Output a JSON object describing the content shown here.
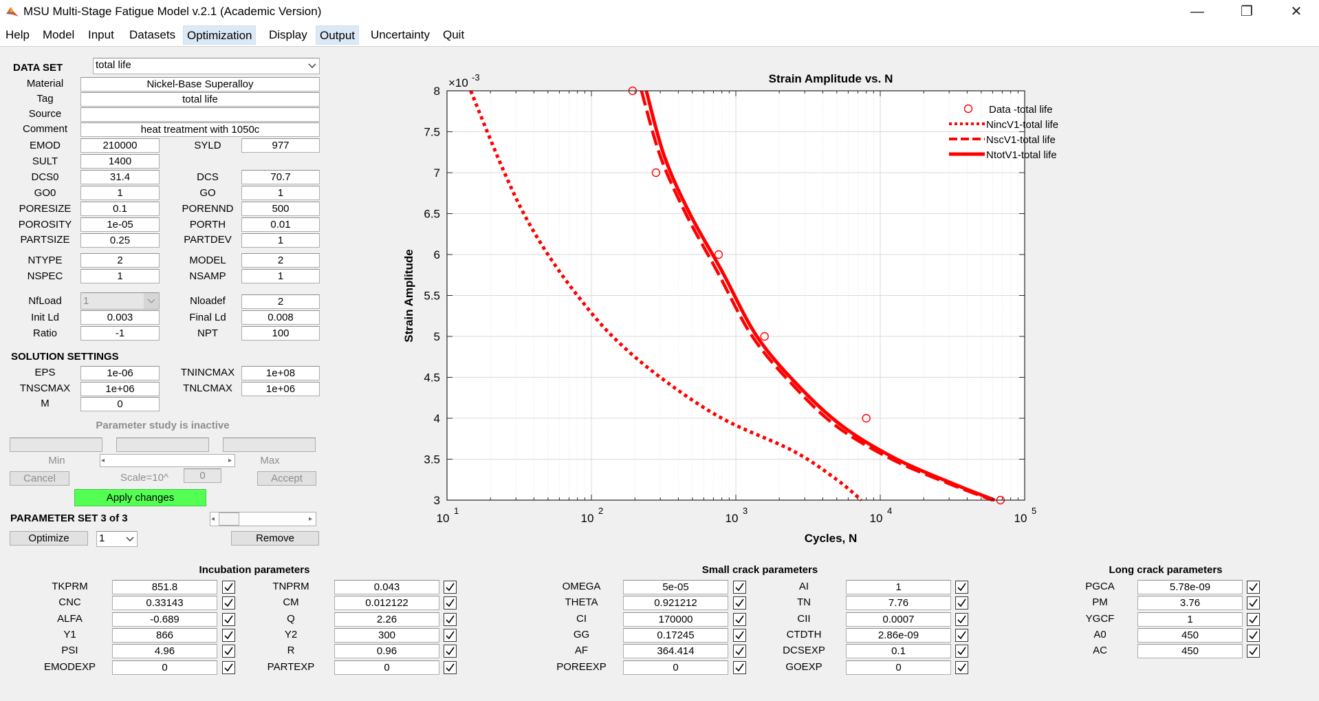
{
  "window": {
    "title": "MSU Multi-Stage Fatigue Model v.2.1 (Academic Version)",
    "minimize": "—",
    "maximize": "❐",
    "close": "✕"
  },
  "menu": [
    "Help",
    "Model",
    "Input",
    "Datasets",
    "Optimization",
    "Display",
    "Output",
    "Uncertainty",
    "Quit"
  ],
  "data_set": {
    "header": "DATA SET",
    "selected": "total life",
    "material_label": "Material",
    "material": "Nickel-Base Superalloy",
    "tag_label": "Tag",
    "tag": "total life",
    "source_label": "Source",
    "source": "",
    "comment_label": "Comment",
    "comment": "heat treatment with 1050c"
  },
  "props": {
    "emod_l": "EMOD",
    "emod": "210000",
    "syld_l": "SYLD",
    "syld": "977",
    "sult_l": "SULT",
    "sult": "1400",
    "dcs0_l": "DCS0",
    "dcs0": "31.4",
    "dcs_l": "DCS",
    "dcs": "70.7",
    "go0_l": "GO0",
    "go0": "1",
    "go_l": "GO",
    "go": "1",
    "poresize_l": "PORESIZE",
    "poresize": "0.1",
    "porennd_l": "PORENND",
    "porennd": "500",
    "porosity_l": "POROSITY",
    "porosity": "1e-05",
    "porth_l": "PORTH",
    "porth": "0.01",
    "partsize_l": "PARTSIZE",
    "partsize": "0.25",
    "partdev_l": "PARTDEV",
    "partdev": "1",
    "ntype_l": "NTYPE",
    "ntype": "2",
    "model_l": "MODEL",
    "model": "2",
    "nspec_l": "NSPEC",
    "nspec": "1",
    "nsamp_l": "NSAMP",
    "nsamp": "1",
    "nfload_l": "NfLoad",
    "nfload": "1",
    "nloadef_l": "Nloadef",
    "nloadef": "2",
    "initld_l": "Init Ld",
    "initld": "0.003",
    "finalld_l": "Final Ld",
    "finalld": "0.008",
    "ratio_l": "Ratio",
    "ratio": "-1",
    "npt_l": "NPT",
    "npt": "100"
  },
  "solution": {
    "header": "SOLUTION SETTINGS",
    "eps_l": "EPS",
    "eps": "1e-06",
    "tnincmax_l": "TNINCMAX",
    "tnincmax": "1e+08",
    "tnscmax_l": "TNSCMAX",
    "tnscmax": "1e+06",
    "tnlcmax_l": "TNLCMAX",
    "tnlcmax": "1e+06",
    "m_l": "M",
    "m": "0"
  },
  "param_study": {
    "status": "Parameter study is inactive",
    "min": "Min",
    "max": "Max",
    "cancel": "Cancel",
    "scale": "Scale=10^",
    "scale_val": "0",
    "accept": "Accept",
    "apply": "Apply changes"
  },
  "param_set": {
    "header": "PARAMETER SET 3 of 3",
    "optimize": "Optimize",
    "selected": "1",
    "remove": "Remove"
  },
  "incubation": {
    "title": "Incubation parameters",
    "col1": [
      {
        "label": "TKPRM",
        "value": "851.8",
        "checked": true
      },
      {
        "label": "CNC",
        "value": "0.33143",
        "checked": true
      },
      {
        "label": "ALFA",
        "value": "-0.689",
        "checked": true
      },
      {
        "label": "Y1",
        "value": "866",
        "checked": true
      },
      {
        "label": "PSI",
        "value": "4.96",
        "checked": true
      },
      {
        "label": "EMODEXP",
        "value": "0",
        "checked": true
      }
    ],
    "col2": [
      {
        "label": "TNPRM",
        "value": "0.043",
        "checked": true
      },
      {
        "label": "CM",
        "value": "0.012122",
        "checked": true
      },
      {
        "label": "Q",
        "value": "2.26",
        "checked": true
      },
      {
        "label": "Y2",
        "value": "300",
        "checked": true
      },
      {
        "label": "R",
        "value": "0.96",
        "checked": true
      },
      {
        "label": "PARTEXP",
        "value": "0",
        "checked": true
      }
    ]
  },
  "small_crack": {
    "title": "Small crack parameters",
    "col1": [
      {
        "label": "OMEGA",
        "value": "5e-05",
        "checked": true
      },
      {
        "label": "THETA",
        "value": "0.921212",
        "checked": true
      },
      {
        "label": "CI",
        "value": "170000",
        "checked": true
      },
      {
        "label": "GG",
        "value": "0.17245",
        "checked": true
      },
      {
        "label": "AF",
        "value": "364.414",
        "checked": true
      },
      {
        "label": "POREEXP",
        "value": "0",
        "checked": true
      }
    ],
    "col2": [
      {
        "label": "AI",
        "value": "1",
        "checked": true
      },
      {
        "label": "TN",
        "value": "7.76",
        "checked": true
      },
      {
        "label": "CII",
        "value": "0.0007",
        "checked": true
      },
      {
        "label": "CTDTH",
        "value": "2.86e-09",
        "checked": true
      },
      {
        "label": "DCSEXP",
        "value": "0.1",
        "checked": true
      },
      {
        "label": "GOEXP",
        "value": "0",
        "checked": true
      }
    ]
  },
  "long_crack": {
    "title": "Long crack parameters",
    "col1": [
      {
        "label": "PGCA",
        "value": "5.78e-09",
        "checked": true
      },
      {
        "label": "PM",
        "value": "3.76",
        "checked": true
      },
      {
        "label": "YGCF",
        "value": "1",
        "checked": true
      },
      {
        "label": "A0",
        "value": "450",
        "checked": true
      },
      {
        "label": "AC",
        "value": "450",
        "checked": true
      }
    ]
  },
  "chart_data": {
    "type": "line",
    "title": "Strain Amplitude vs. N",
    "xlabel": "Cycles, N",
    "ylabel": "Strain Amplitude",
    "exponent_label": "×10",
    "exponent": "-3",
    "xscale": "log",
    "xlim": [
      10,
      100000
    ],
    "ylim": [
      3,
      8
    ],
    "xticks": [
      "10",
      "10",
      "10",
      "10",
      "10"
    ],
    "xtick_exps": [
      "1",
      "2",
      "3",
      "4",
      "5"
    ],
    "yticks": [
      "3",
      "3.5",
      "4",
      "4.5",
      "5",
      "5.5",
      "6",
      "6.5",
      "7",
      "7.5",
      "8"
    ],
    "grid": true,
    "legend_position": "top-right",
    "color": "#ff0000",
    "series": [
      {
        "name": "Data -total life",
        "style": "markers",
        "points": [
          [
            193,
            8
          ],
          [
            280,
            7
          ],
          [
            760,
            6
          ],
          [
            1580,
            5
          ],
          [
            8000,
            4
          ],
          [
            68000,
            3
          ]
        ]
      },
      {
        "name": "NincV1-total life",
        "style": "dotted",
        "points": [
          [
            14.6,
            8
          ],
          [
            19,
            7.5
          ],
          [
            25,
            7
          ],
          [
            34,
            6.5
          ],
          [
            50,
            6
          ],
          [
            80,
            5.5
          ],
          [
            140,
            5
          ],
          [
            300,
            4.5
          ],
          [
            800,
            4
          ],
          [
            2500,
            3.6
          ],
          [
            5000,
            3.25
          ],
          [
            7400,
            3
          ]
        ]
      },
      {
        "name": "NscV1-total life",
        "style": "dashed",
        "points": [
          [
            222,
            8
          ],
          [
            300,
            7.2
          ],
          [
            450,
            6.5
          ],
          [
            740,
            5.8
          ],
          [
            1300,
            5
          ],
          [
            2500,
            4.4
          ],
          [
            5000,
            3.9
          ],
          [
            12000,
            3.5
          ],
          [
            30000,
            3.2
          ],
          [
            60000,
            3
          ]
        ]
      },
      {
        "name": "NtotV1-total life",
        "style": "solid",
        "points": [
          [
            240,
            8
          ],
          [
            320,
            7.2
          ],
          [
            480,
            6.5
          ],
          [
            800,
            5.8
          ],
          [
            1400,
            5
          ],
          [
            2700,
            4.4
          ],
          [
            5500,
            3.9
          ],
          [
            13000,
            3.5
          ],
          [
            32000,
            3.2
          ],
          [
            62000,
            3
          ]
        ]
      }
    ]
  }
}
